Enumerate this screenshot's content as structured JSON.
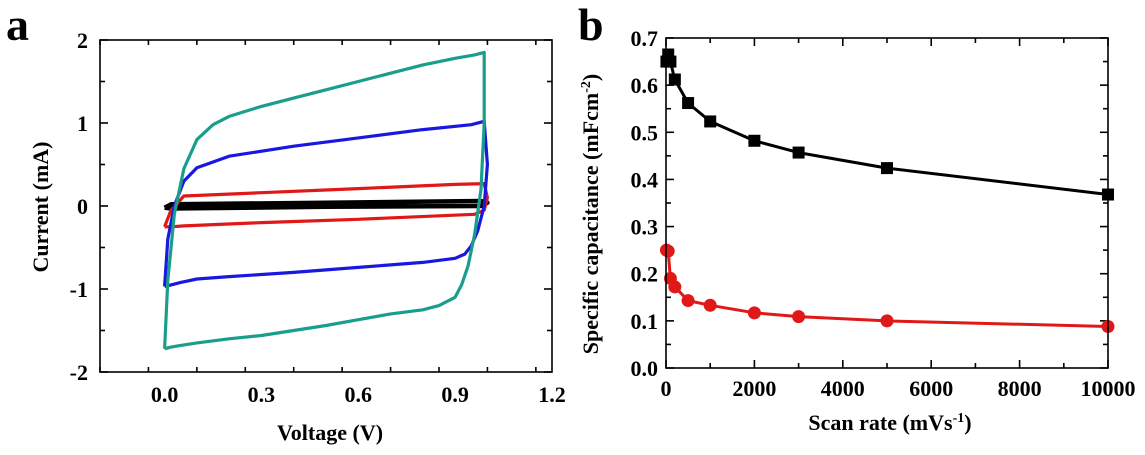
{
  "chart_data": [
    {
      "panel": "a",
      "type": "line",
      "xlabel": "Voltage (V)",
      "ylabel": "Current (mA)",
      "xlim": [
        -0.2,
        1.2
      ],
      "ylim": [
        -2,
        2
      ],
      "xticks": [
        0.0,
        0.3,
        0.6,
        0.9,
        1.2
      ],
      "xtick_labels": [
        "0.0",
        "0.3",
        "0.6",
        "0.9",
        "1.2"
      ],
      "yticks": [
        -2,
        -1,
        0,
        1,
        2
      ],
      "ytick_labels": [
        "-2",
        "-1",
        "0",
        "1",
        "2"
      ],
      "series": [
        {
          "name": "black",
          "color": "#000000",
          "x": [
            0.0,
            0.02,
            0.5,
            0.98,
            1.0,
            0.98,
            0.5,
            0.02,
            0.0
          ],
          "y": [
            -0.02,
            0.02,
            0.04,
            0.06,
            0.04,
            0.0,
            -0.01,
            -0.03,
            -0.02
          ]
        },
        {
          "name": "red",
          "color": "#e01818",
          "x": [
            0.0,
            0.02,
            0.06,
            0.3,
            0.6,
            0.9,
            0.99,
            1.0,
            0.99,
            0.96,
            0.6,
            0.3,
            0.06,
            0.02,
            0.0
          ],
          "y": [
            -0.25,
            -0.05,
            0.12,
            0.16,
            0.21,
            0.26,
            0.27,
            0.1,
            -0.05,
            -0.1,
            -0.16,
            -0.2,
            -0.24,
            -0.25,
            -0.25
          ]
        },
        {
          "name": "blue",
          "color": "#1818e0",
          "x": [
            0.0,
            0.01,
            0.03,
            0.06,
            0.1,
            0.2,
            0.4,
            0.6,
            0.8,
            0.95,
            0.99,
            1.0,
            0.99,
            0.97,
            0.95,
            0.93,
            0.9,
            0.8,
            0.6,
            0.4,
            0.2,
            0.1,
            0.05,
            0.02,
            0.0
          ],
          "y": [
            -0.97,
            -0.4,
            0.0,
            0.3,
            0.46,
            0.6,
            0.72,
            0.82,
            0.92,
            0.98,
            1.02,
            0.5,
            0.0,
            -0.3,
            -0.48,
            -0.58,
            -0.63,
            -0.68,
            -0.74,
            -0.8,
            -0.85,
            -0.88,
            -0.92,
            -0.95,
            -0.97
          ]
        },
        {
          "name": "teal",
          "color": "#1a9e8c",
          "x": [
            0.0,
            0.01,
            0.03,
            0.06,
            0.1,
            0.15,
            0.2,
            0.3,
            0.4,
            0.5,
            0.6,
            0.7,
            0.8,
            0.9,
            0.96,
            0.99,
            0.99,
            0.98,
            0.96,
            0.94,
            0.92,
            0.9,
            0.85,
            0.8,
            0.7,
            0.6,
            0.5,
            0.4,
            0.3,
            0.2,
            0.1,
            0.05,
            0.02,
            0.0
          ],
          "y": [
            -1.72,
            -0.9,
            -0.1,
            0.45,
            0.8,
            0.98,
            1.08,
            1.2,
            1.3,
            1.4,
            1.5,
            1.6,
            1.7,
            1.78,
            1.82,
            1.85,
            1.0,
            0.2,
            -0.35,
            -0.72,
            -0.95,
            -1.1,
            -1.2,
            -1.25,
            -1.3,
            -1.37,
            -1.44,
            -1.5,
            -1.56,
            -1.6,
            -1.65,
            -1.68,
            -1.7,
            -1.72
          ]
        }
      ]
    },
    {
      "panel": "b",
      "type": "line",
      "xlabel": "Scan rate (mVs",
      "xlabel_sup": "-1",
      "xlabel_end": ")",
      "ylabel": "Specific capacitance (mFcm",
      "ylabel_sup": "-2",
      "ylabel_end": ")",
      "xlim": [
        0,
        10000
      ],
      "ylim": [
        0,
        0.7
      ],
      "xticks": [
        0,
        2000,
        4000,
        6000,
        8000,
        10000
      ],
      "xtick_labels": [
        "0",
        "2000",
        "4000",
        "6000",
        "8000",
        "10000"
      ],
      "yticks": [
        0.0,
        0.1,
        0.2,
        0.3,
        0.4,
        0.5,
        0.6,
        0.7
      ],
      "ytick_labels": [
        "0.0",
        "0.1",
        "0.2",
        "0.3",
        "0.4",
        "0.5",
        "0.6",
        "0.7"
      ],
      "series": [
        {
          "name": "square",
          "color": "#000000",
          "marker": "square",
          "x": [
            10,
            50,
            100,
            200,
            500,
            1000,
            2000,
            3000,
            5000,
            10000
          ],
          "y": [
            0.65,
            0.665,
            0.65,
            0.612,
            0.562,
            0.523,
            0.482,
            0.457,
            0.424,
            0.368
          ]
        },
        {
          "name": "circle",
          "color": "#e01818",
          "marker": "circle",
          "x": [
            10,
            50,
            100,
            200,
            500,
            1000,
            2000,
            3000,
            5000,
            10000
          ],
          "y": [
            0.25,
            0.248,
            0.19,
            0.172,
            0.143,
            0.133,
            0.117,
            0.109,
            0.1,
            0.088
          ]
        }
      ]
    }
  ]
}
